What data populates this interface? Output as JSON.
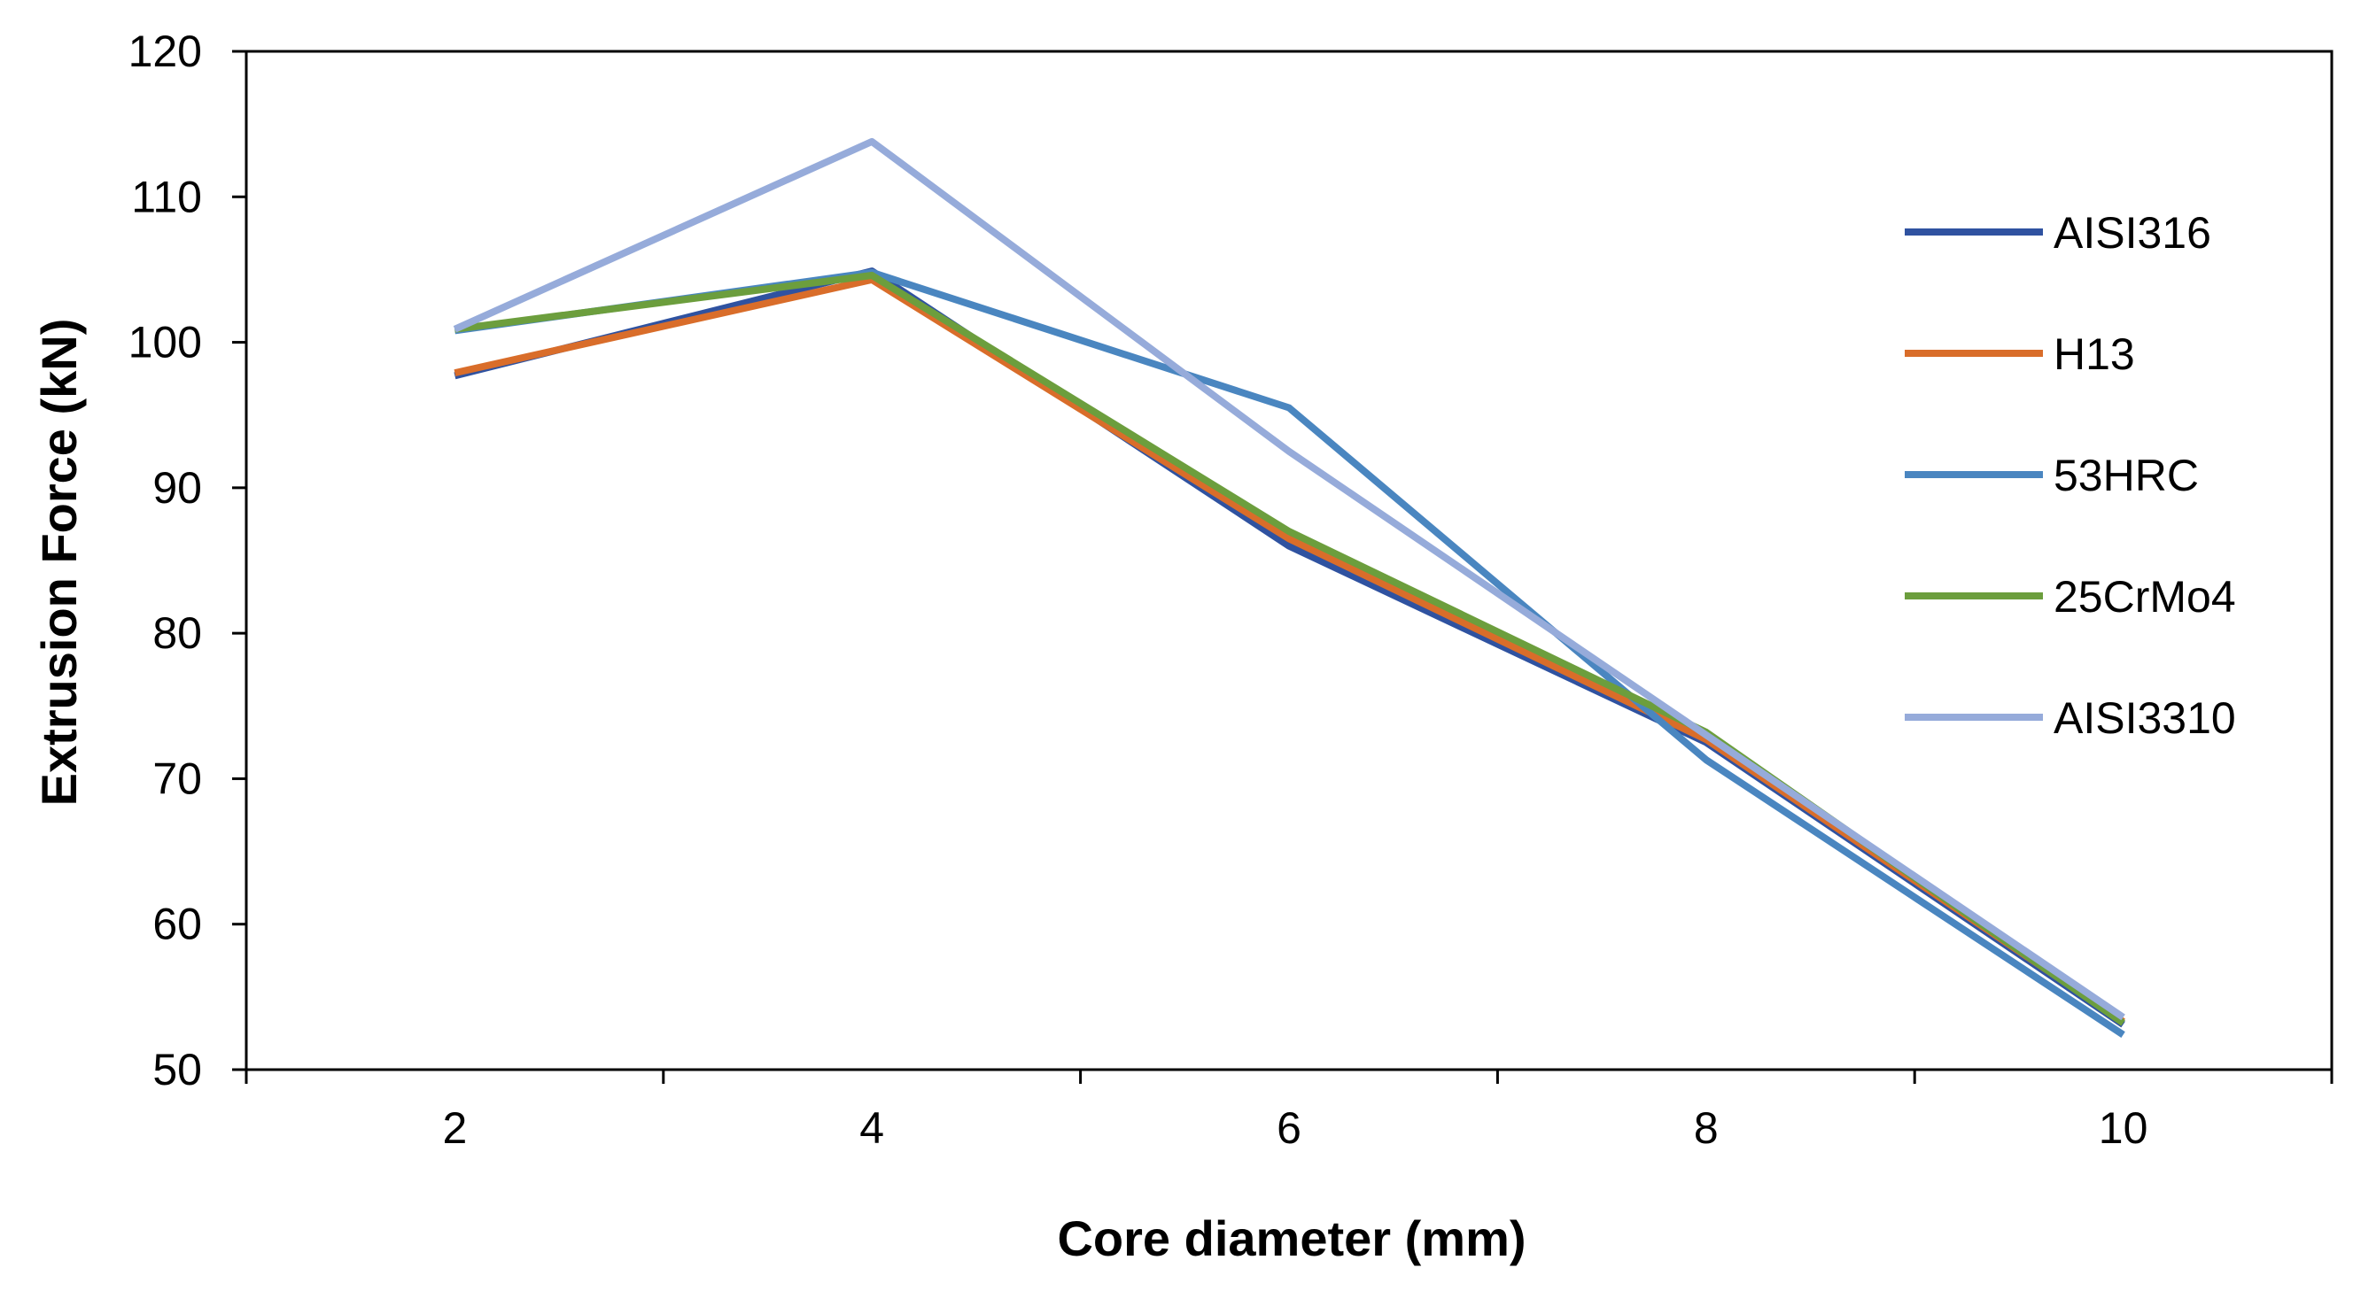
{
  "chart_data": {
    "type": "line",
    "title": "",
    "xlabel": "Core diameter (mm)",
    "ylabel": "Extrusion Force (kN)",
    "x": [
      2,
      4,
      6,
      8,
      10
    ],
    "x_ticks": [
      "2",
      "4",
      "6",
      "8",
      "10"
    ],
    "ylim": [
      50,
      120
    ],
    "y_ticks": [
      "50",
      "60",
      "70",
      "80",
      "90",
      "100",
      "110",
      "120"
    ],
    "grid": false,
    "legend_position": "right",
    "series": [
      {
        "name": "AISI316",
        "color": "#2F52A0",
        "values": [
          97.7,
          104.9,
          86.0,
          72.5,
          53.1
        ]
      },
      {
        "name": "H13",
        "color": "#D96D2A",
        "values": [
          97.9,
          104.3,
          86.5,
          72.7,
          53.3
        ]
      },
      {
        "name": "53HRC",
        "color": "#4A86C0",
        "values": [
          100.8,
          104.8,
          95.5,
          71.3,
          52.4
        ]
      },
      {
        "name": "25CrMo4",
        "color": "#6C9E3D",
        "values": [
          100.9,
          104.6,
          87.0,
          73.2,
          53.2
        ]
      },
      {
        "name": "AISI3310",
        "color": "#96ABDA",
        "values": [
          100.9,
          113.8,
          92.5,
          73.0,
          53.6
        ]
      }
    ]
  }
}
